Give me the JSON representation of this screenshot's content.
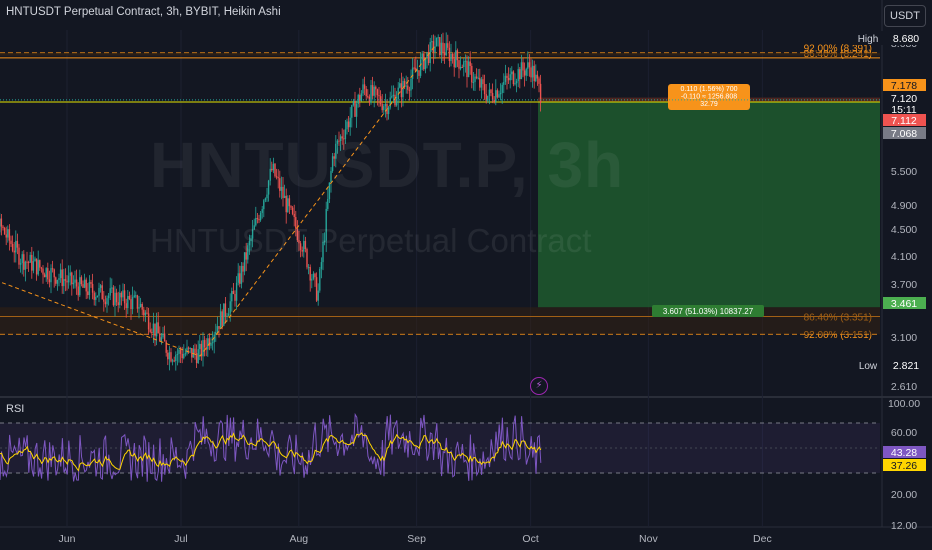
{
  "header": {
    "title": "HNTUSDT Perpetual Contract, 3h, BYBIT, Heikin Ashi",
    "currency": "USDT"
  },
  "watermark": {
    "symbol": "HNTUSDT.P, 3h",
    "description": "HNTUSDT Perpetual Contract"
  },
  "rsi_label": "RSI",
  "colors": {
    "background": "#131722",
    "up": "#26a69a",
    "down": "#ef5350",
    "fib": "#f7931a",
    "profit_zone": "#1e5b2e",
    "rsi_line": "#7e57c2",
    "rsi_ma": "#ffd600"
  },
  "chart_data": [
    {
      "type": "candlestick",
      "x_ticks": [
        "Jun",
        "Jul",
        "Aug",
        "Sep",
        "Oct",
        "Nov",
        "Dec"
      ],
      "y_ticks": [
        "8.680",
        "7.178",
        "7.120",
        "15:11",
        "7.112",
        "7.068",
        "5.500",
        "4.900",
        "4.500",
        "4.100",
        "3.700",
        "3.461",
        "3.100",
        "2.821",
        "2.610"
      ],
      "high": {
        "label": "High",
        "value": "8.680"
      },
      "low": {
        "label": "Low",
        "value": "2.821"
      },
      "last_price": {
        "value": "7.120",
        "countdown": "15:11"
      },
      "fib_levels": [
        {
          "label": "92.00% (8.391)",
          "value": 8.391
        },
        {
          "label": "86.40% (8.241)",
          "value": 8.241
        },
        {
          "label": "86.40% (3.351)",
          "value": 3.351
        },
        {
          "label": "92.00% (3.151)",
          "value": 3.151
        }
      ],
      "position": {
        "entry": 7.068,
        "target": 3.461,
        "stop": 7.178,
        "stop_label_lines": [
          "0.110 (1.56%) 700",
          "-0.110 ≈ 1256.808",
          "32.79"
        ],
        "target_label": "3.607 (51.03%) 10837.27"
      },
      "series_path": [
        {
          "date": "2023-05-08",
          "price": 5.2
        },
        {
          "date": "2023-05-20",
          "price": 4.1
        },
        {
          "date": "2023-06-05",
          "price": 3.7
        },
        {
          "date": "2023-06-20",
          "price": 3.5
        },
        {
          "date": "2023-06-28",
          "price": 2.95
        },
        {
          "date": "2023-07-06",
          "price": 2.95
        },
        {
          "date": "2023-07-15",
          "price": 3.6
        },
        {
          "date": "2023-07-25",
          "price": 5.6
        },
        {
          "date": "2023-08-02",
          "price": 4.3
        },
        {
          "date": "2023-08-06",
          "price": 3.6
        },
        {
          "date": "2023-08-10",
          "price": 5.9
        },
        {
          "date": "2023-08-18",
          "price": 7.4
        },
        {
          "date": "2023-08-24",
          "price": 7.0
        },
        {
          "date": "2023-08-30",
          "price": 7.6
        },
        {
          "date": "2023-09-06",
          "price": 8.65
        },
        {
          "date": "2023-09-13",
          "price": 8.1
        },
        {
          "date": "2023-09-20",
          "price": 7.2
        },
        {
          "date": "2023-09-27",
          "price": 7.8
        },
        {
          "date": "2023-10-01",
          "price": 8.0
        },
        {
          "date": "2023-10-04",
          "price": 7.2
        }
      ]
    },
    {
      "type": "line",
      "title": "RSI",
      "y_ticks": [
        "100.00",
        "60.00",
        "43.28",
        "37.26",
        "20.00",
        "12.00"
      ],
      "rsi_value": 43.28,
      "rsi_ma_value": 37.26,
      "band": [
        30,
        70
      ],
      "range": [
        0,
        100
      ]
    }
  ]
}
